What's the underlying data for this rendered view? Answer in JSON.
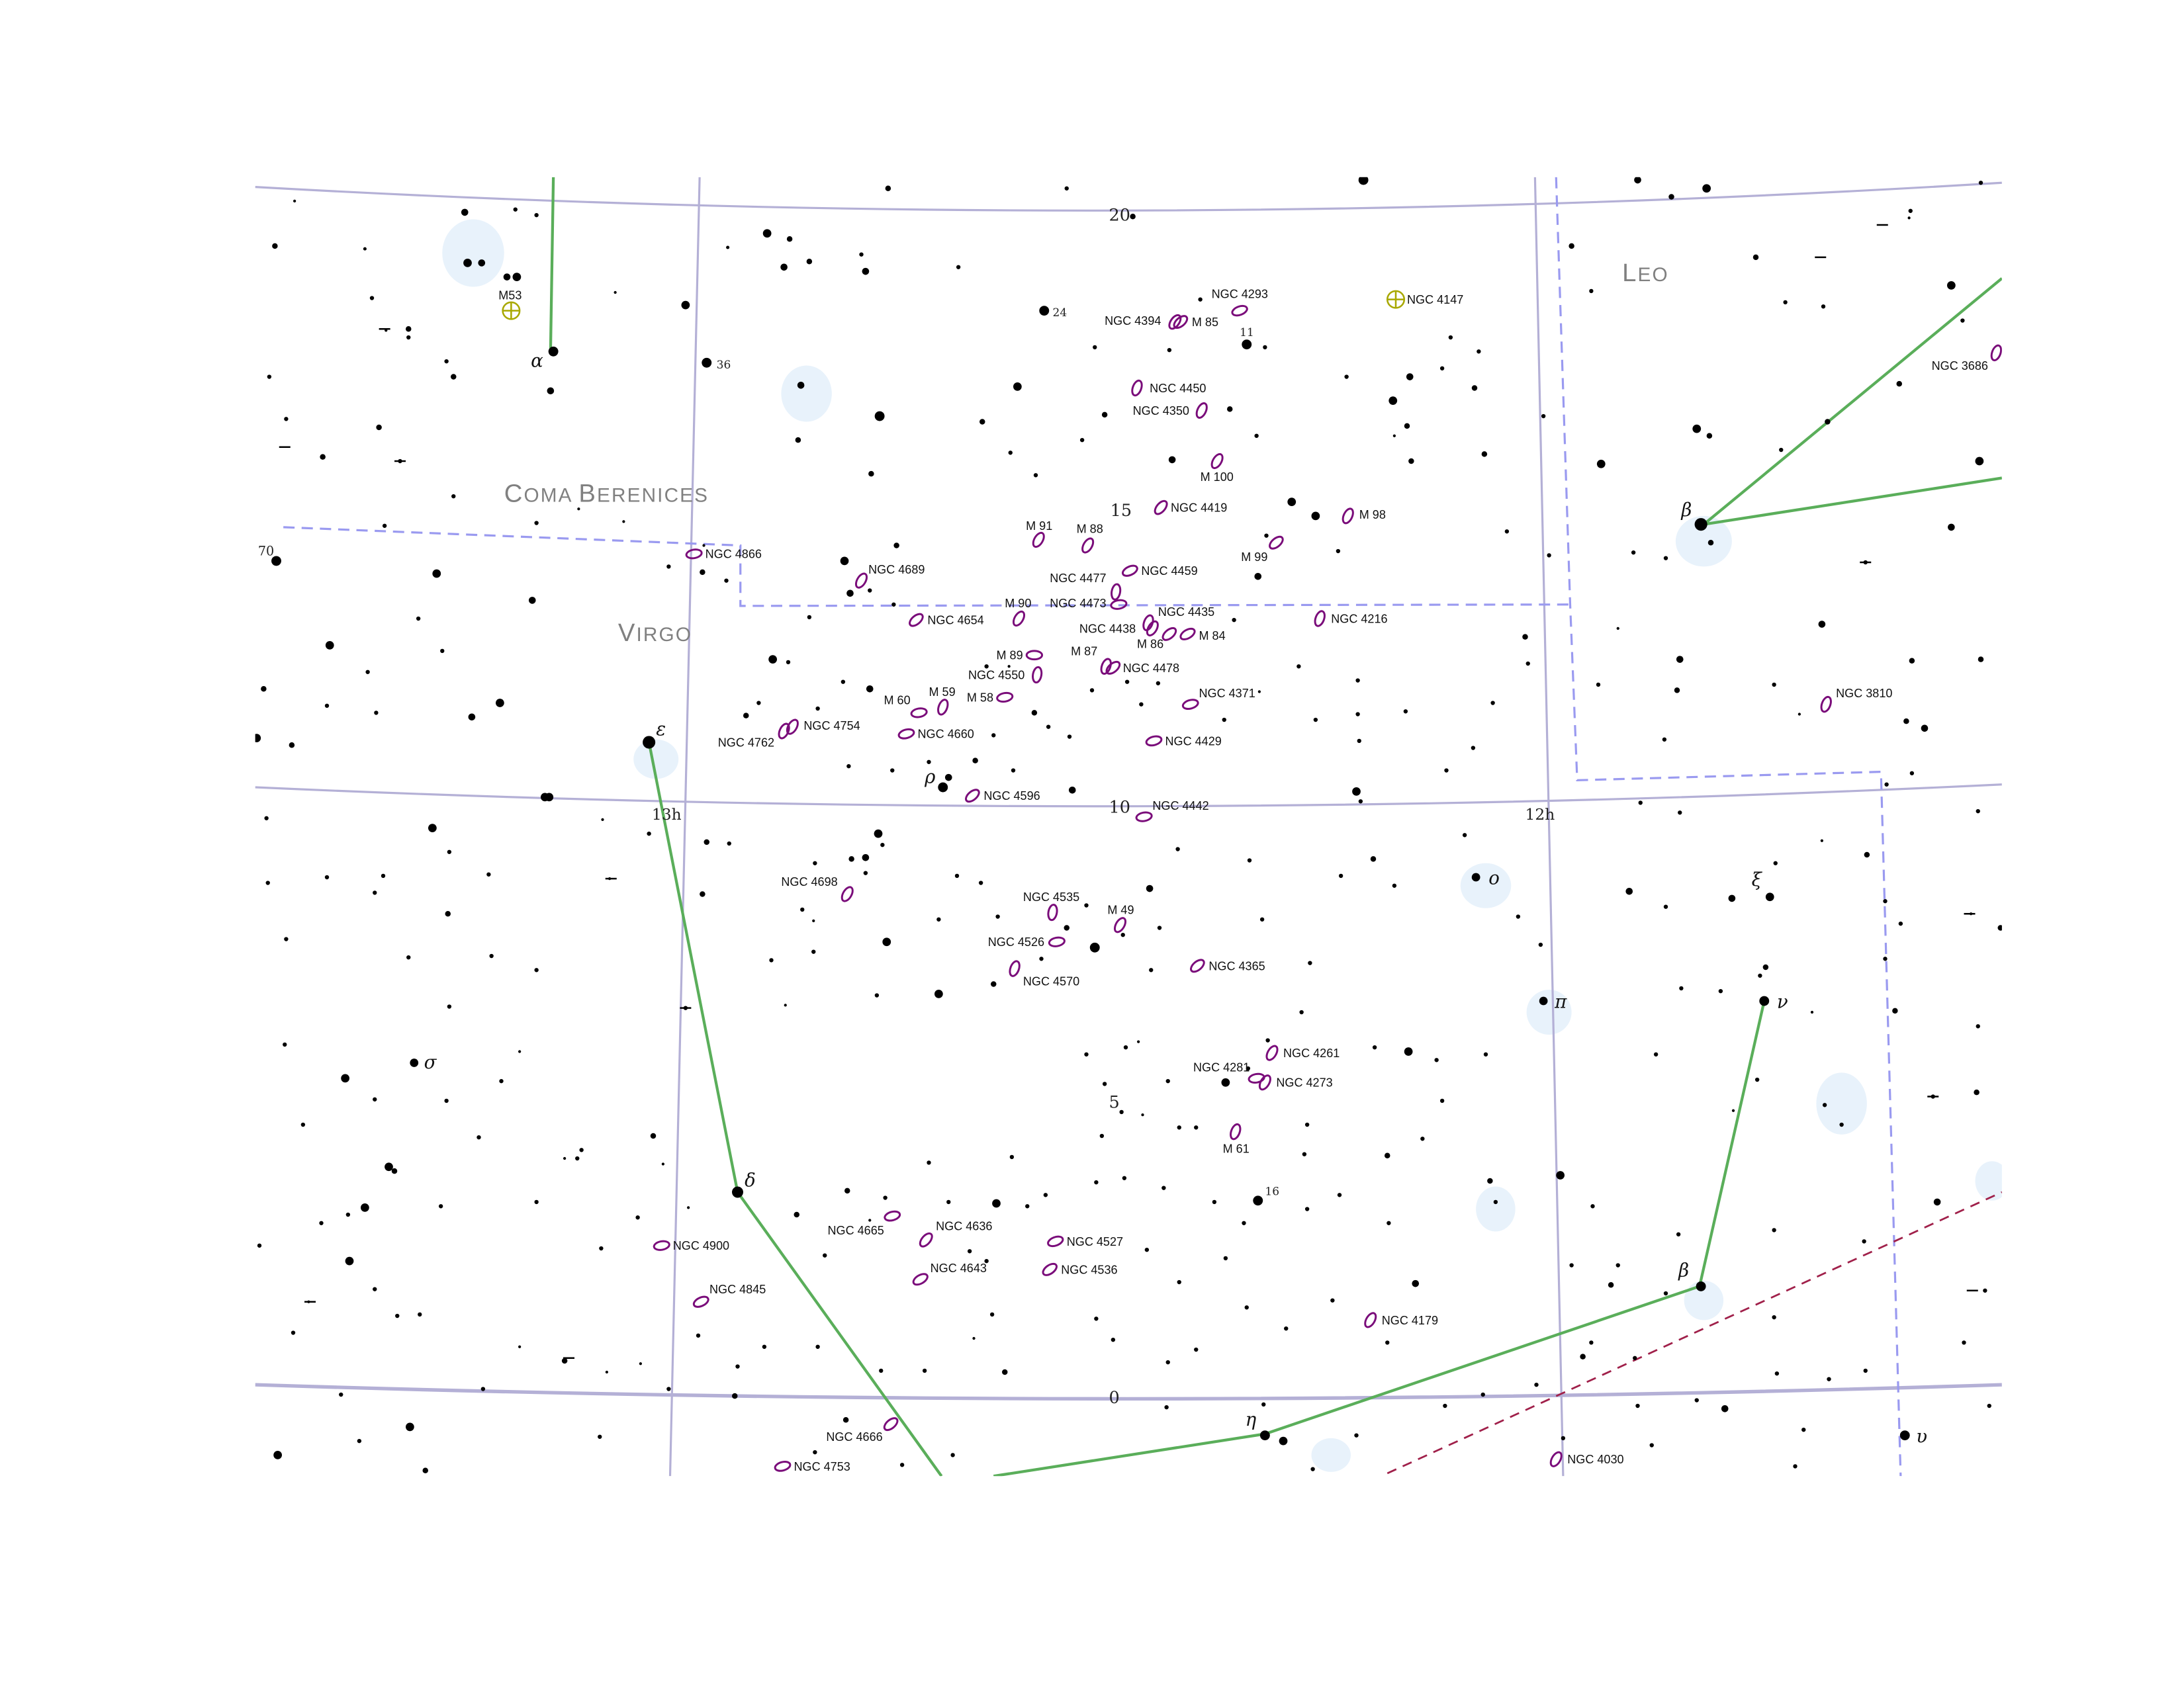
{
  "constellations": [
    {
      "id": "coma",
      "big": "C",
      "small": "OMA ",
      "big2": "B",
      "small2": "ERENICES"
    },
    {
      "id": "virgo",
      "big": "V",
      "small": "IRGO",
      "big2": "",
      "small2": ""
    },
    {
      "id": "leo",
      "big": "L",
      "small": "EO",
      "big2": "",
      "small2": ""
    }
  ],
  "grid_labels": {
    "dec20": "20",
    "dec15": "15",
    "dec10": "10",
    "dec5": "5",
    "dec0": "0",
    "ra13": "13h",
    "ra12": "12h",
    "left70": "70"
  },
  "stars_greek": {
    "alpha": "α",
    "beta_leo": "β",
    "epsilon": "ε",
    "rho": "ρ",
    "omicron": "ο",
    "xi": "ξ",
    "nu": "ν",
    "pi": "π",
    "sigma": "σ",
    "delta": "δ",
    "beta_vir": "β",
    "eta": "η",
    "upsilon": "υ"
  },
  "star_numbers": {
    "n24": "24",
    "n36": "36",
    "n11": "11",
    "n16": "16"
  },
  "clusters": {
    "m53": "M53",
    "ngc4147": "NGC 4147"
  },
  "galaxies": [
    "NGC 4293",
    "NGC 4394",
    "M 85",
    "NGC 4450",
    "NGC 4350",
    "M 100",
    "NGC 4419",
    "M 98",
    "M 99",
    "M 91",
    "M 88",
    "NGC 4459",
    "NGC 4477",
    "NGC 4689",
    "NGC 4866",
    "M 90",
    "NGC 4473",
    "NGC 4435",
    "NGC 4654",
    "NGC 4438",
    "M 86",
    "M 84",
    "NGC 4216",
    "M 89",
    "NGC 4478",
    "M 87",
    "NGC 4550",
    "NGC 4371",
    "M 60",
    "M 59",
    "M 58",
    "NGC 4754",
    "NGC 4762",
    "NGC 4660",
    "NGC 4429",
    "NGC 4596",
    "NGC 4442",
    "NGC 3686",
    "NGC 3810",
    "NGC 4698",
    "NGC 4535",
    "M 49",
    "NGC 4526",
    "NGC 4570",
    "NGC 4365",
    "NGC 4261",
    "NGC 4281",
    "NGC 4273",
    "M 61",
    "NGC 4665",
    "NGC 4636",
    "NGC 4527",
    "NGC 4643",
    "NGC 4536",
    "NGC 4900",
    "NGC 4845",
    "NGC 4179",
    "NGC 4666",
    "NGC 4753",
    "NGC 4030"
  ],
  "colors": {
    "grid": "#b4b0d6",
    "boundary": "#9a9af0",
    "figure": "#5aae5a",
    "galaxy": "#7a0c7a",
    "ecliptic": "#a0204a",
    "cluster": "#a8a800",
    "star": "#000000",
    "label_const": "#808080"
  }
}
